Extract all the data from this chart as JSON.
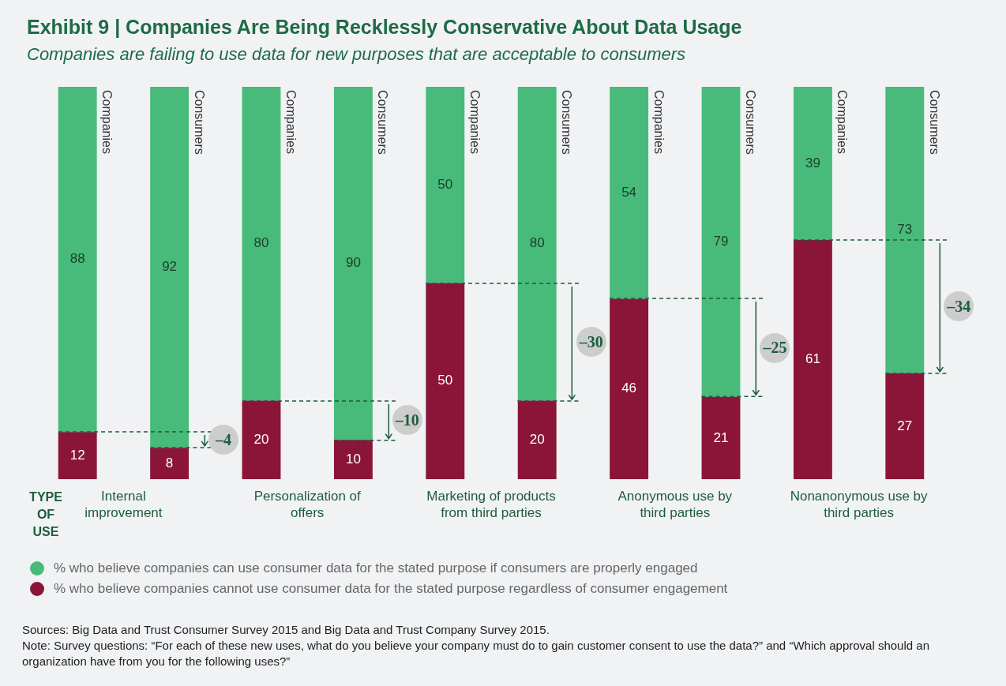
{
  "chart_data": {
    "type": "bar",
    "title": "Exhibit 9 | Companies Are Being Recklessly Conservative About Data Usage",
    "subtitle": "Companies are failing to use data for new purposes that are acceptable to consumers",
    "categories": [
      "Companies",
      "Consumers",
      "Companies",
      "Consumers",
      "Companies",
      "Consumers",
      "Companies",
      "Consumers",
      "Companies",
      "Consumers"
    ],
    "series": [
      {
        "name": "% who believe companies cannot use consumer data for the stated purpose regardless of consumer engagement",
        "color": "#8a1538",
        "values": [
          12,
          8,
          20,
          10,
          50,
          20,
          46,
          21,
          61,
          27
        ]
      },
      {
        "name": "% who believe companies can use consumer data for the stated purpose if consumers are properly engaged",
        "color": "#48bb7a",
        "values": [
          88,
          92,
          80,
          90,
          50,
          80,
          54,
          79,
          39,
          73
        ]
      }
    ],
    "stacked": true,
    "data_labels": true,
    "legend": "bottom left",
    "annotations": [
      "TYPE OF USE",
      "Internal improvement",
      "Personalization of offers",
      "Marketing of products from third parties",
      "Anonymous use by third parties",
      "Nonanonymous use by third parties",
      "–4",
      "–10",
      "–30",
      "–25",
      "–34",
      "Sources: Big Data and Trust Consumer Survey 2015 and Big Data and Trust Company Survey 2015.",
      "Note: Survey questions: “For each of these new uses, what do you believe your company must do to gain customer consent to use the data?” and “Which approval should an organization have from you for the following uses?”"
    ]
  }
}
